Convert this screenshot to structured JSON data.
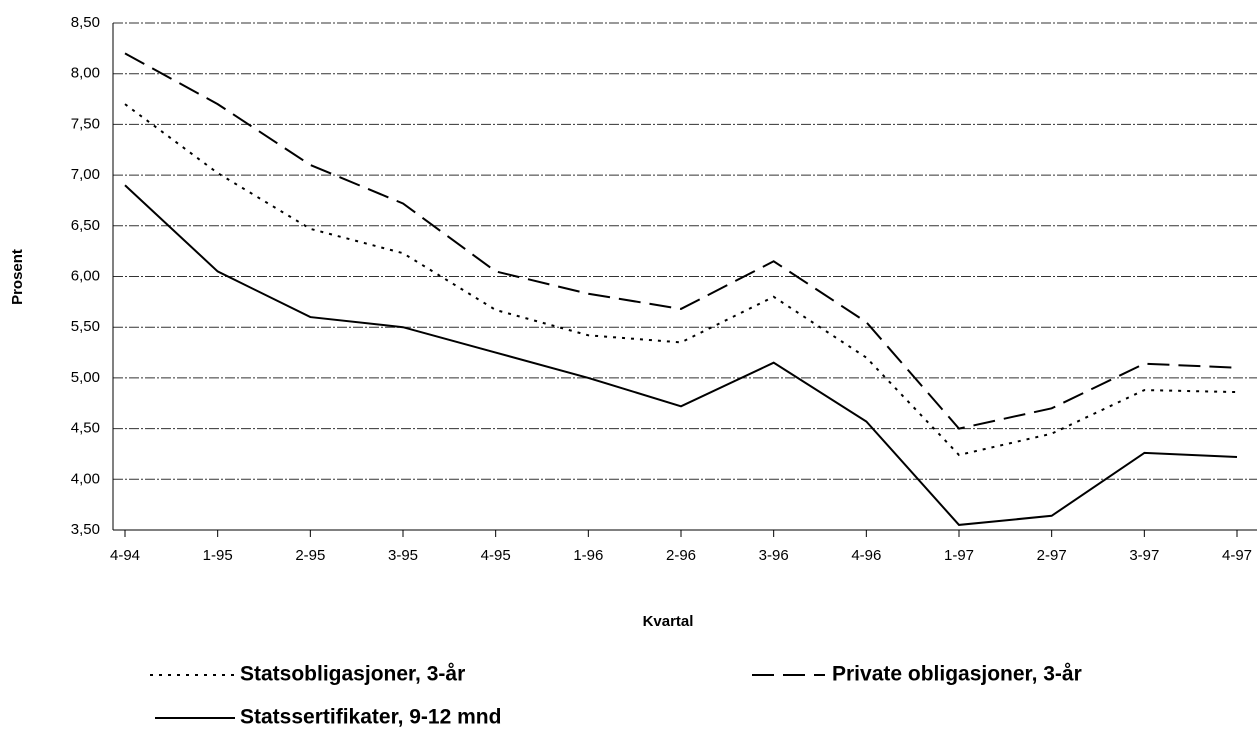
{
  "chart_data": {
    "type": "line",
    "xlabel": "Kvartal",
    "ylabel": "Prosent",
    "categories": [
      "4-94",
      "1-95",
      "2-95",
      "3-95",
      "4-95",
      "1-96",
      "2-96",
      "3-96",
      "4-96",
      "1-97",
      "2-97",
      "3-97",
      "4-97"
    ],
    "series": [
      {
        "name": "Statsobligasjoner, 3-år",
        "color": "#000000",
        "dash": "dotted",
        "values": [
          7.7,
          7.02,
          6.47,
          6.23,
          5.67,
          5.42,
          5.35,
          5.8,
          5.2,
          4.24,
          4.45,
          4.88,
          4.86
        ]
      },
      {
        "name": "Private obligasjoner, 3-år",
        "color": "#000000",
        "dash": "dashed",
        "values": [
          8.2,
          7.7,
          7.1,
          6.72,
          6.05,
          5.83,
          5.68,
          6.15,
          5.55,
          4.5,
          4.7,
          5.14,
          5.1
        ]
      },
      {
        "name": "Statssertifikater, 9-12 mnd",
        "color": "#000000",
        "dash": "solid",
        "values": [
          6.9,
          6.05,
          5.6,
          5.5,
          5.25,
          5.0,
          4.72,
          5.15,
          4.57,
          3.55,
          3.64,
          4.26,
          4.22
        ]
      }
    ],
    "ylim": [
      3.5,
      8.5
    ],
    "yticks": [
      {
        "value": 3.5,
        "label": "3,50"
      },
      {
        "value": 4,
        "label": "4,00"
      },
      {
        "value": 4.5,
        "label": "4,50"
      },
      {
        "value": 5,
        "label": "5,00"
      },
      {
        "value": 5.5,
        "label": "5,50"
      },
      {
        "value": 6,
        "label": "6,00"
      },
      {
        "value": 6.5,
        "label": "6,50"
      },
      {
        "value": 7,
        "label": "7,00"
      },
      {
        "value": 7.5,
        "label": "7,50"
      },
      {
        "value": 8,
        "label": "8,00"
      },
      {
        "value": 8.5,
        "label": "8,50"
      }
    ],
    "grid": true
  }
}
